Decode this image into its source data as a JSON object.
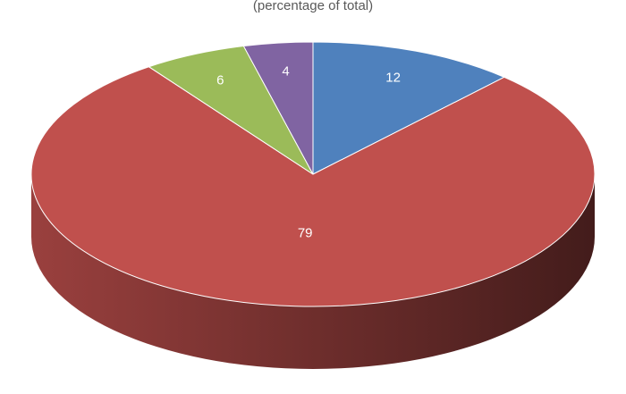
{
  "chart_data": {
    "type": "pie3d",
    "subtitle": "(percentage of total)",
    "values": [
      12,
      79,
      6,
      4
    ],
    "colors": [
      "#4f81bd",
      "#c0504d",
      "#9bbb59",
      "#8064a2"
    ]
  }
}
